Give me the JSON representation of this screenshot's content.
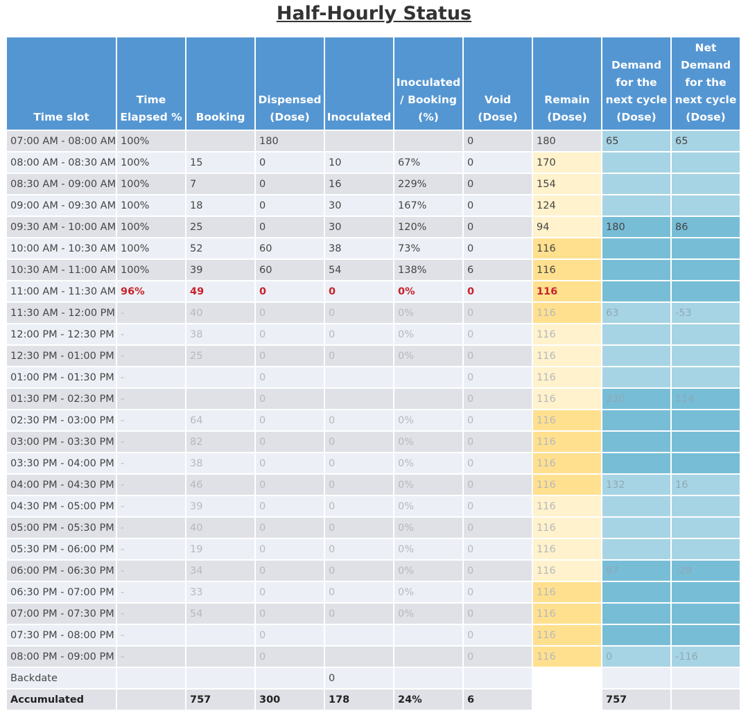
{
  "title": "Half-Hourly Status",
  "columns": [
    "Time slot",
    "Time Elapsed %",
    "Booking",
    "Dispensed (Dose)",
    "Inoculated",
    "Inoculated / Booking (%)",
    "Void (Dose)",
    "Remain (Dose)",
    "Demand for the next cycle (Dose)",
    "Net Demand for the next cycle (Dose)"
  ],
  "colors": {
    "header": "#5496d2",
    "current_highlight": "#c8222b",
    "remain_pale": "#fff2cc",
    "remain_gold": "#ffe08f",
    "demand_light": "#a7d4e4",
    "demand_dark": "#78bdd6"
  },
  "rows": [
    {
      "slot": "07:00 AM - 08:00 AM",
      "elapsed": "100%",
      "booking": "",
      "dispensed": "180",
      "inoculated": "",
      "ratio": "",
      "void": "0",
      "remain": "180",
      "demand": "65",
      "net": "65",
      "state": "past",
      "remain_shade": "none",
      "demand_shade": "light"
    },
    {
      "slot": "08:00 AM - 08:30 AM",
      "elapsed": "100%",
      "booking": "15",
      "dispensed": "0",
      "inoculated": "10",
      "ratio": "67%",
      "void": "0",
      "remain": "170",
      "demand": "",
      "net": "",
      "state": "past",
      "remain_shade": "pale",
      "demand_shade": "light"
    },
    {
      "slot": "08:30 AM - 09:00 AM",
      "elapsed": "100%",
      "booking": "7",
      "dispensed": "0",
      "inoculated": "16",
      "ratio": "229%",
      "void": "0",
      "remain": "154",
      "demand": "",
      "net": "",
      "state": "past",
      "remain_shade": "pale",
      "demand_shade": "light"
    },
    {
      "slot": "09:00 AM - 09:30 AM",
      "elapsed": "100%",
      "booking": "18",
      "dispensed": "0",
      "inoculated": "30",
      "ratio": "167%",
      "void": "0",
      "remain": "124",
      "demand": "",
      "net": "",
      "state": "past",
      "remain_shade": "pale",
      "demand_shade": "light"
    },
    {
      "slot": "09:30 AM - 10:00 AM",
      "elapsed": "100%",
      "booking": "25",
      "dispensed": "0",
      "inoculated": "30",
      "ratio": "120%",
      "void": "0",
      "remain": "94",
      "demand": "180",
      "net": "86",
      "state": "past",
      "remain_shade": "pale",
      "demand_shade": "dark"
    },
    {
      "slot": "10:00 AM - 10:30 AM",
      "elapsed": "100%",
      "booking": "52",
      "dispensed": "60",
      "inoculated": "38",
      "ratio": "73%",
      "void": "0",
      "remain": "116",
      "demand": "",
      "net": "",
      "state": "past",
      "remain_shade": "gold",
      "demand_shade": "dark"
    },
    {
      "slot": "10:30 AM - 11:00 AM",
      "elapsed": "100%",
      "booking": "39",
      "dispensed": "60",
      "inoculated": "54",
      "ratio": "138%",
      "void": "6",
      "remain": "116",
      "demand": "",
      "net": "",
      "state": "past",
      "remain_shade": "gold",
      "demand_shade": "dark"
    },
    {
      "slot": "11:00 AM - 11:30 AM",
      "elapsed": "96%",
      "booking": "49",
      "dispensed": "0",
      "inoculated": "0",
      "ratio": "0%",
      "void": "0",
      "remain": "116",
      "demand": "",
      "net": "",
      "state": "current",
      "remain_shade": "gold",
      "demand_shade": "dark"
    },
    {
      "slot": "11:30 AM - 12:00 PM",
      "elapsed": "-",
      "booking": "40",
      "dispensed": "0",
      "inoculated": "0",
      "ratio": "0%",
      "void": "0",
      "remain": "116",
      "demand": "63",
      "net": "-53",
      "state": "future",
      "remain_shade": "gold",
      "demand_shade": "light"
    },
    {
      "slot": "12:00 PM - 12:30 PM",
      "elapsed": "-",
      "booking": "38",
      "dispensed": "0",
      "inoculated": "0",
      "ratio": "0%",
      "void": "0",
      "remain": "116",
      "demand": "",
      "net": "",
      "state": "future",
      "remain_shade": "pale",
      "demand_shade": "light"
    },
    {
      "slot": "12:30 PM - 01:00 PM",
      "elapsed": "-",
      "booking": "25",
      "dispensed": "0",
      "inoculated": "0",
      "ratio": "0%",
      "void": "0",
      "remain": "116",
      "demand": "",
      "net": "",
      "state": "future",
      "remain_shade": "pale",
      "demand_shade": "light"
    },
    {
      "slot": "01:00 PM - 01:30 PM",
      "elapsed": "-",
      "booking": "",
      "dispensed": "0",
      "inoculated": "",
      "ratio": "",
      "void": "0",
      "remain": "116",
      "demand": "",
      "net": "",
      "state": "future",
      "remain_shade": "pale",
      "demand_shade": "light"
    },
    {
      "slot": "01:30 PM - 02:30 PM",
      "elapsed": "-",
      "booking": "",
      "dispensed": "0",
      "inoculated": "",
      "ratio": "",
      "void": "0",
      "remain": "116",
      "demand": "230",
      "net": "114",
      "state": "future",
      "remain_shade": "pale",
      "demand_shade": "dark"
    },
    {
      "slot": "02:30 PM - 03:00 PM",
      "elapsed": "-",
      "booking": "64",
      "dispensed": "0",
      "inoculated": "0",
      "ratio": "0%",
      "void": "0",
      "remain": "116",
      "demand": "",
      "net": "",
      "state": "future",
      "remain_shade": "gold",
      "demand_shade": "dark"
    },
    {
      "slot": "03:00 PM - 03:30 PM",
      "elapsed": "-",
      "booking": "82",
      "dispensed": "0",
      "inoculated": "0",
      "ratio": "0%",
      "void": "0",
      "remain": "116",
      "demand": "",
      "net": "",
      "state": "future",
      "remain_shade": "gold",
      "demand_shade": "dark"
    },
    {
      "slot": "03:30 PM - 04:00 PM",
      "elapsed": "-",
      "booking": "38",
      "dispensed": "0",
      "inoculated": "0",
      "ratio": "0%",
      "void": "0",
      "remain": "116",
      "demand": "",
      "net": "",
      "state": "future",
      "remain_shade": "gold",
      "demand_shade": "dark"
    },
    {
      "slot": "04:00 PM - 04:30 PM",
      "elapsed": "-",
      "booking": "46",
      "dispensed": "0",
      "inoculated": "0",
      "ratio": "0%",
      "void": "0",
      "remain": "116",
      "demand": "132",
      "net": "16",
      "state": "future",
      "remain_shade": "gold",
      "demand_shade": "light"
    },
    {
      "slot": "04:30 PM - 05:00 PM",
      "elapsed": "-",
      "booking": "39",
      "dispensed": "0",
      "inoculated": "0",
      "ratio": "0%",
      "void": "0",
      "remain": "116",
      "demand": "",
      "net": "",
      "state": "future",
      "remain_shade": "pale",
      "demand_shade": "light"
    },
    {
      "slot": "05:00 PM - 05:30 PM",
      "elapsed": "-",
      "booking": "40",
      "dispensed": "0",
      "inoculated": "0",
      "ratio": "0%",
      "void": "0",
      "remain": "116",
      "demand": "",
      "net": "",
      "state": "future",
      "remain_shade": "pale",
      "demand_shade": "light"
    },
    {
      "slot": "05:30 PM - 06:00 PM",
      "elapsed": "-",
      "booking": "19",
      "dispensed": "0",
      "inoculated": "0",
      "ratio": "0%",
      "void": "0",
      "remain": "116",
      "demand": "",
      "net": "",
      "state": "future",
      "remain_shade": "pale",
      "demand_shade": "light"
    },
    {
      "slot": "06:00 PM - 06:30 PM",
      "elapsed": "-",
      "booking": "34",
      "dispensed": "0",
      "inoculated": "0",
      "ratio": "0%",
      "void": "0",
      "remain": "116",
      "demand": "87",
      "net": "-29",
      "state": "future",
      "remain_shade": "pale",
      "demand_shade": "dark"
    },
    {
      "slot": "06:30 PM - 07:00 PM",
      "elapsed": "-",
      "booking": "33",
      "dispensed": "0",
      "inoculated": "0",
      "ratio": "0%",
      "void": "0",
      "remain": "116",
      "demand": "",
      "net": "",
      "state": "future",
      "remain_shade": "gold",
      "demand_shade": "dark"
    },
    {
      "slot": "07:00 PM - 07:30 PM",
      "elapsed": "-",
      "booking": "54",
      "dispensed": "0",
      "inoculated": "0",
      "ratio": "0%",
      "void": "0",
      "remain": "116",
      "demand": "",
      "net": "",
      "state": "future",
      "remain_shade": "gold",
      "demand_shade": "dark"
    },
    {
      "slot": "07:30 PM - 08:00 PM",
      "elapsed": "-",
      "booking": "",
      "dispensed": "0",
      "inoculated": "",
      "ratio": "",
      "void": "0",
      "remain": "116",
      "demand": "",
      "net": "",
      "state": "future",
      "remain_shade": "gold",
      "demand_shade": "dark"
    },
    {
      "slot": "08:00 PM - 09:00 PM",
      "elapsed": "-",
      "booking": "",
      "dispensed": "0",
      "inoculated": "",
      "ratio": "",
      "void": "0",
      "remain": "116",
      "demand": "0",
      "net": "-116",
      "state": "future",
      "remain_shade": "gold",
      "demand_shade": "light"
    }
  ],
  "backdate": {
    "slot": "Backdate",
    "elapsed": "",
    "booking": "",
    "dispensed": "",
    "inoculated": "0",
    "ratio": "",
    "void": "",
    "remain": "",
    "demand": "",
    "net": ""
  },
  "accumulated": {
    "slot": "Accumulated",
    "elapsed": "",
    "booking": "757",
    "dispensed": "300",
    "inoculated": "178",
    "ratio": "24%",
    "void": "6",
    "remain": "",
    "demand": "757",
    "net": ""
  }
}
